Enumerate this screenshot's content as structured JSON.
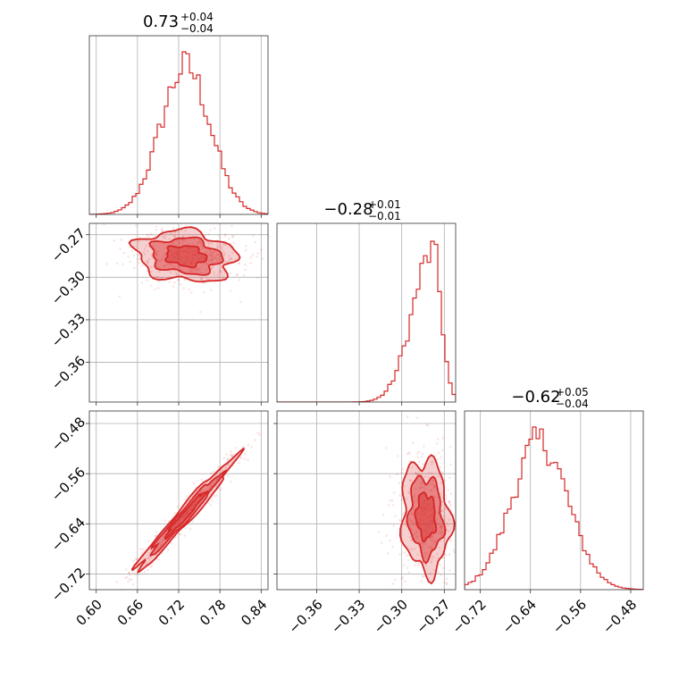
{
  "colors": {
    "series": "#d62728",
    "grid": "#b0b0b0",
    "frame": "#333333"
  },
  "chart_data": {
    "type": "corner",
    "grid": true,
    "parameters": [
      {
        "range": [
          0.59,
          0.85
        ],
        "ticks": [
          0.6,
          0.66,
          0.72,
          0.78,
          0.84
        ],
        "tick_labels": [
          "0.60",
          "0.66",
          "0.72",
          "0.78",
          "0.84"
        ],
        "title": {
          "value": "0.73",
          "upper": "+0.04",
          "lower": "−0.04"
        },
        "hist": {
          "mean": 0.73,
          "std": 0.036,
          "peak_frac": 0.91
        }
      },
      {
        "range": [
          -0.388,
          -0.262
        ],
        "ticks": [
          -0.36,
          -0.33,
          -0.3,
          -0.27
        ],
        "tick_labels": [
          "−0.36",
          "−0.33",
          "−0.30",
          "−0.27"
        ],
        "title": {
          "value": "−0.28",
          "upper": "+0.01",
          "lower": "−0.01"
        },
        "hist": {
          "mean": -0.278,
          "std": 0.0085,
          "skew_left": true,
          "peak_frac": 0.9
        }
      },
      {
        "range": [
          -0.745,
          -0.46
        ],
        "ticks": [
          -0.72,
          -0.64,
          -0.56,
          -0.48
        ],
        "tick_labels": [
          "−0.72",
          "−0.64",
          "−0.56",
          "−0.48"
        ],
        "title": {
          "value": "−0.62",
          "upper": "+0.05",
          "lower": "−0.04"
        },
        "hist": {
          "mean": -0.625,
          "std": 0.045,
          "peak_frac": 0.91
        }
      }
    ],
    "pairs": [
      {
        "x": 0,
        "y": 1,
        "center": [
          0.73,
          -0.285
        ],
        "spread": [
          0.036,
          0.009
        ],
        "correlation": -0.15
      },
      {
        "x": 0,
        "y": 2,
        "center": [
          0.73,
          -0.625
        ],
        "spread": [
          0.036,
          0.045
        ],
        "correlation": 0.98
      },
      {
        "x": 1,
        "y": 2,
        "center": [
          -0.283,
          -0.628
        ],
        "spread": [
          0.0085,
          0.045
        ],
        "correlation": -0.1
      }
    ]
  }
}
